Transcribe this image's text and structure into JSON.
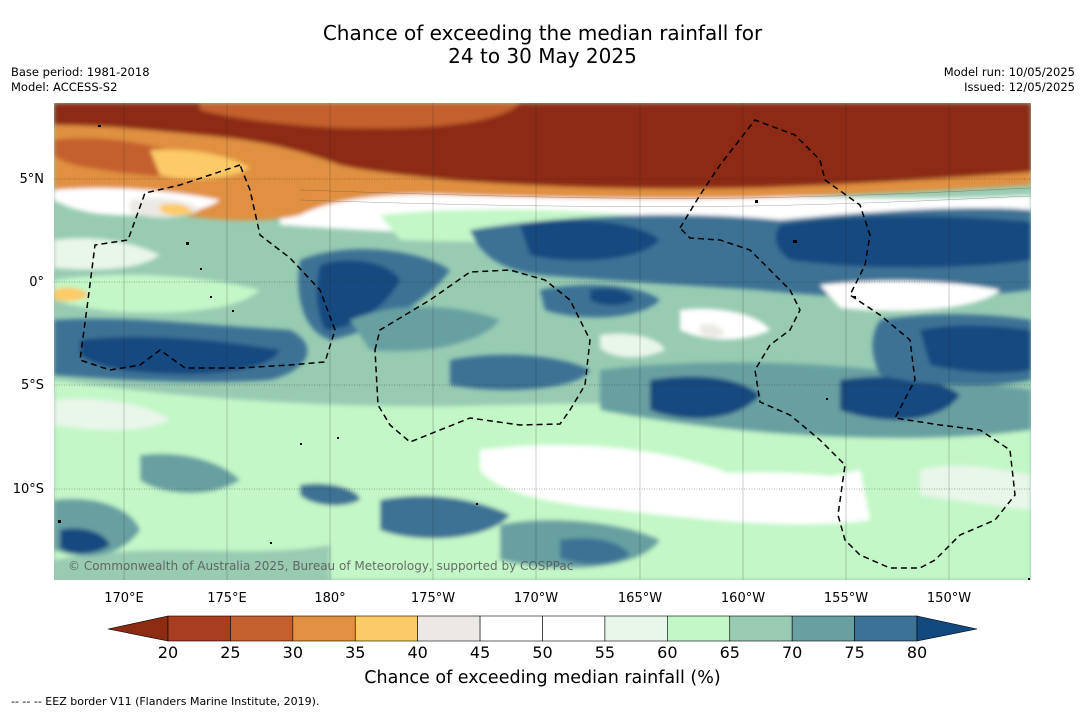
{
  "title": {
    "line1": "Chance of exceeding the median rainfall for",
    "line2": "24 to 30 May 2025"
  },
  "meta_left": {
    "base_period": "Base period: 1981-2018",
    "model": "Model: ACCESS-S2"
  },
  "meta_right": {
    "model_run": "Model run: 10/05/2025",
    "issued": "Issued: 12/05/2025"
  },
  "map": {
    "lon_labels": [
      "170°E",
      "175°E",
      "180°",
      "175°W",
      "170°W",
      "165°W",
      "160°W",
      "155°W",
      "150°W"
    ],
    "lat_labels": [
      "5°N",
      "0°",
      "5°S",
      "10°S"
    ],
    "copyright": "© Commonwealth of Australia 2025, Bureau of Meteorology, supported by COSPPac"
  },
  "colorbar": {
    "ticks": [
      "20",
      "25",
      "30",
      "35",
      "40",
      "45",
      "50",
      "55",
      "60",
      "65",
      "70",
      "75",
      "80"
    ],
    "colors": {
      "below_20": "#8c2a12",
      "20_25": "#a83e1f",
      "25_30": "#c4602e",
      "30_35": "#e09040",
      "35_40": "#fdca68",
      "40_45": "#ece9e4",
      "45_50": "#ffffff",
      "50_55": "#ffffff",
      "55_60": "#e9f6ea",
      "60_65": "#c3f7c7",
      "65_70": "#98cbb2",
      "70_75": "#68a0a2",
      "75_80": "#3c7295",
      "above_80": "#12497f"
    },
    "title": "Chance of exceeding median rainfall (%)"
  },
  "footnote": "-- -- -- EEZ border V11 (Flanders Marine Institute, 2019)."
}
